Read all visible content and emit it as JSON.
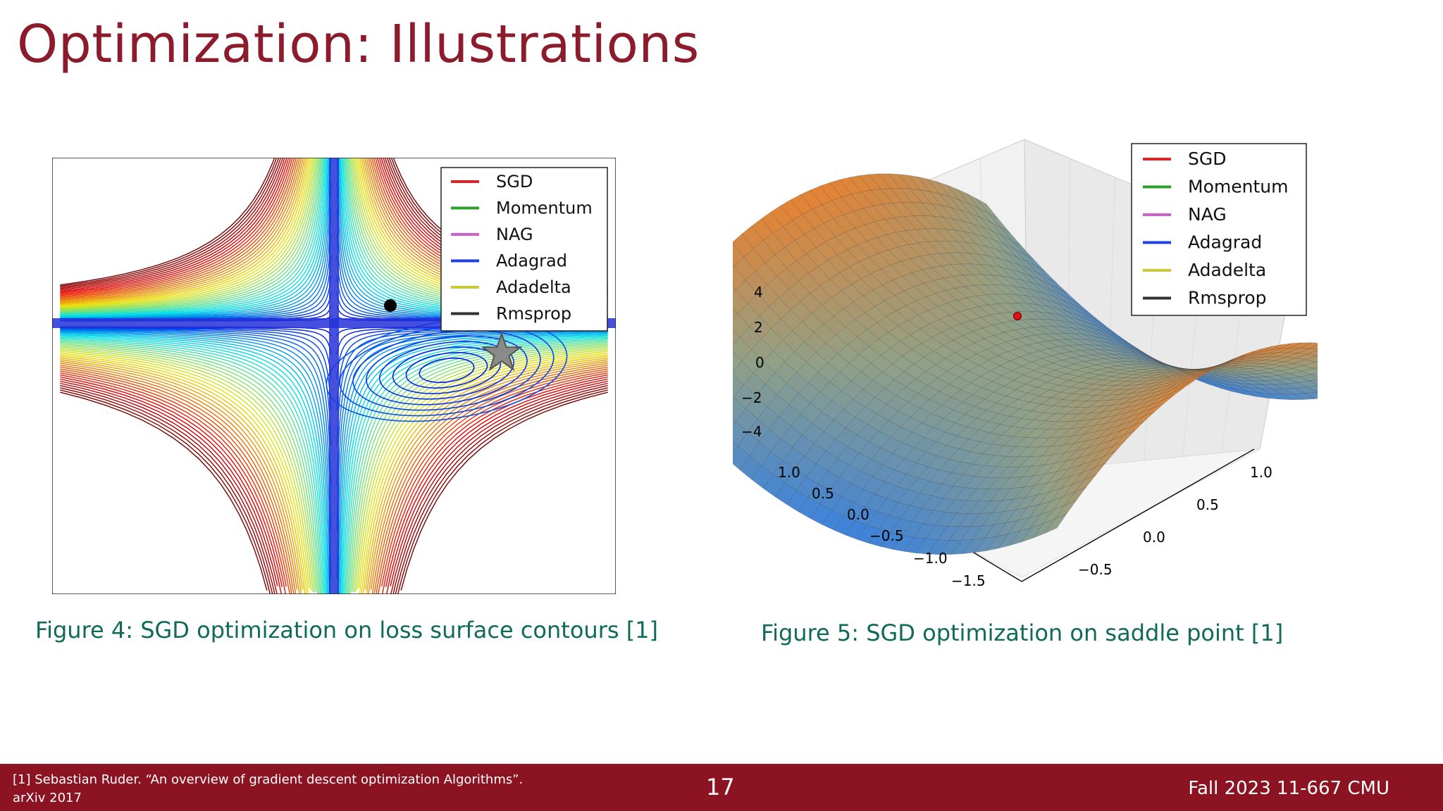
{
  "slide": {
    "title": "Optimization: Illustrations",
    "page_number": "17",
    "course": "Fall 2023 11-667 CMU",
    "reference_line1": "[1] Sebastian Ruder. “An overview of gradient descent optimization Algorithms”.",
    "reference_line2": "arXiv 2017"
  },
  "figures": {
    "fig4_caption": "Figure 4: SGD optimization on loss surface contours [1]",
    "fig5_caption": "Figure 5: SGD optimization on saddle point [1]"
  },
  "legend": {
    "entries": [
      {
        "label": "SGD",
        "color": "#d62728"
      },
      {
        "label": "Momentum",
        "color": "#2ca02c"
      },
      {
        "label": "NAG",
        "color": "#d05fd0"
      },
      {
        "label": "Adagrad",
        "color": "#1f3fe0"
      },
      {
        "label": "Adadelta",
        "color": "#c8c83a"
      },
      {
        "label": "Rmsprop",
        "color": "#333333"
      }
    ]
  },
  "saddle_axes": {
    "z_ticks": [
      "4",
      "2",
      "0",
      "−2",
      "−4"
    ],
    "y_ticks": [
      "1.0",
      "0.5",
      "0.0",
      "−0.5",
      "−1.0",
      "−1.5"
    ],
    "x_ticks": [
      "1.0",
      "0.5",
      "0.0",
      "−0.5"
    ]
  },
  "colors": {
    "title": "#8c1c2b",
    "caption": "#0f6a57",
    "footer": "#8c1422"
  }
}
